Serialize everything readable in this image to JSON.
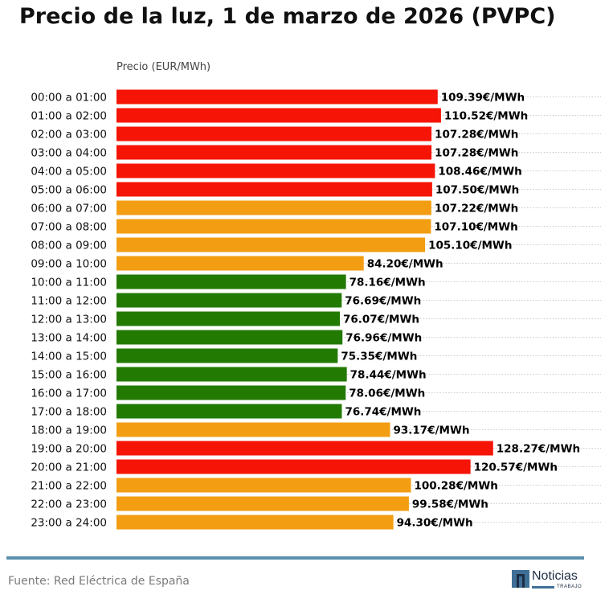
{
  "title": "Precio de la luz, 1 de marzo de 2026 (PVPC)",
  "source": "Fuente: Red Eléctrica de España",
  "logo": {
    "name": "Noticias",
    "subtitle": "TRABAJO"
  },
  "colors": {
    "high": "#f51405",
    "mid": "#f29d12",
    "low": "#227a02",
    "grid": "#bbbbbb",
    "footer_rule": "#5c8fae"
  },
  "chart_data": {
    "type": "bar",
    "orientation": "horizontal",
    "title": "Precio de la luz, 1 de marzo de 2026 (PVPC)",
    "ylabel": "Precio (EUR/MWh)",
    "value_suffix": "€/MWh",
    "xlim": [
      0,
      165
    ],
    "grid": "dotted horizontal",
    "categories": [
      "00:00 a 01:00",
      "01:00 a 02:00",
      "02:00 a 03:00",
      "03:00 a 04:00",
      "04:00 a 05:00",
      "05:00 a 06:00",
      "06:00 a 07:00",
      "07:00 a 08:00",
      "08:00 a 09:00",
      "09:00 a 10:00",
      "10:00 a 11:00",
      "11:00 a 12:00",
      "12:00 a 13:00",
      "13:00 a 14:00",
      "14:00 a 15:00",
      "15:00 a 16:00",
      "16:00 a 17:00",
      "17:00 a 18:00",
      "18:00 a 19:00",
      "19:00 a 20:00",
      "20:00 a 21:00",
      "21:00 a 22:00",
      "22:00 a 23:00",
      "23:00 a 24:00"
    ],
    "values": [
      109.39,
      110.52,
      107.28,
      107.28,
      108.46,
      107.5,
      107.22,
      107.1,
      105.1,
      84.2,
      78.16,
      76.69,
      76.07,
      76.96,
      75.35,
      78.44,
      78.06,
      76.74,
      93.17,
      128.27,
      120.57,
      100.28,
      99.58,
      94.3
    ],
    "value_labels": [
      "109.39€/MWh",
      "110.52€/MWh",
      "107.28€/MWh",
      "107.28€/MWh",
      "108.46€/MWh",
      "107.50€/MWh",
      "107.22€/MWh",
      "107.10€/MWh",
      "105.10€/MWh",
      "84.20€/MWh",
      "78.16€/MWh",
      "76.69€/MWh",
      "76.07€/MWh",
      "76.96€/MWh",
      "75.35€/MWh",
      "78.44€/MWh",
      "78.06€/MWh",
      "76.74€/MWh",
      "93.17€/MWh",
      "128.27€/MWh",
      "120.57€/MWh",
      "100.28€/MWh",
      "99.58€/MWh",
      "94.30€/MWh"
    ],
    "levels": [
      "high",
      "high",
      "high",
      "high",
      "high",
      "high",
      "mid",
      "mid",
      "mid",
      "mid",
      "low",
      "low",
      "low",
      "low",
      "low",
      "low",
      "low",
      "low",
      "mid",
      "high",
      "high",
      "mid",
      "mid",
      "mid"
    ]
  }
}
